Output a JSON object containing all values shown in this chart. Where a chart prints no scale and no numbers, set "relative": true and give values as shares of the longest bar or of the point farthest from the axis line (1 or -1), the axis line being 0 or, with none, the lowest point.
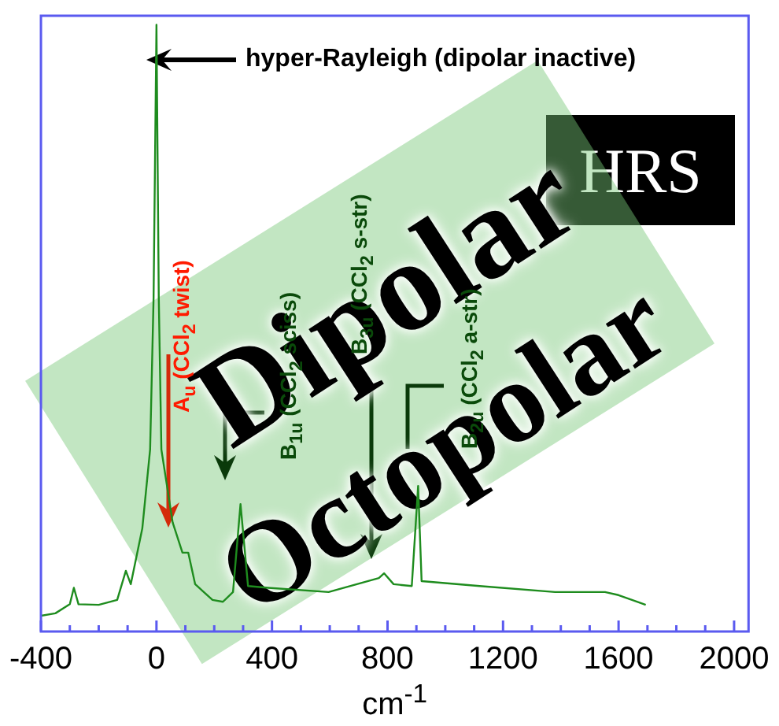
{
  "chart_data": {
    "type": "line",
    "xlabel": "cm$^{-1}$",
    "relative": true,
    "marker": "none",
    "color": "#1e8c1e",
    "xlim": [
      -400,
      2050
    ],
    "xticks": [
      -400,
      {
        "value": -300,
        "label": null
      },
      {
        "value": -200,
        "label": null
      },
      {
        "value": -100,
        "label": null
      },
      0,
      {
        "value": 100,
        "label": null
      },
      {
        "value": 200,
        "label": null
      },
      {
        "value": 300,
        "label": null
      },
      400,
      {
        "value": 500,
        "label": null
      },
      {
        "value": 600,
        "label": null
      },
      {
        "value": 700,
        "label": null
      },
      800,
      {
        "value": 900,
        "label": null
      },
      {
        "value": 1000,
        "label": null
      },
      {
        "value": 1100,
        "label": null
      },
      1200,
      {
        "value": 1300,
        "label": null
      },
      {
        "value": 1400,
        "label": null
      },
      {
        "value": 1500,
        "label": null
      },
      1600,
      {
        "value": 1700,
        "label": null
      },
      {
        "value": 1800,
        "label": null
      },
      {
        "value": 1900,
        "label": null
      },
      2000
    ],
    "x": [
      -400,
      -350,
      -300,
      -286,
      -270,
      -200,
      -136,
      -106,
      -89,
      -49,
      -22,
      -10,
      0,
      8,
      17,
      56,
      90,
      110,
      134,
      194,
      230,
      265,
      291,
      317,
      387,
      596,
      770,
      788,
      821,
      884,
      906,
      918,
      1119,
      1380,
      1553,
      1600,
      1694
    ],
    "values": [
      0.026,
      0.03,
      0.045,
      0.072,
      0.045,
      0.044,
      0.052,
      0.1,
      0.078,
      0.17,
      0.3,
      0.55,
      1,
      0.55,
      0.3,
      0.18,
      0.13,
      0.13,
      0.078,
      0.052,
      0.049,
      0.065,
      0.21,
      0.075,
      0.072,
      0.065,
      0.088,
      0.096,
      0.078,
      0.075,
      0.24,
      0.083,
      0.075,
      0.065,
      0.065,
      0.06,
      0.044
    ],
    "annotations": [
      "hyper-Rayleigh (dipolar inactive)",
      "A$_{u}$ (CCl$_{2}$ twist)",
      "B$_{1u}$ (CCl$_{2}$ sciss)",
      "B$_{3u}$ (CCl$_{2}$ s-str)",
      "B$_{2u}$ (CCl$_{2}$ a-str)",
      "Dipolar",
      "Octopolar",
      "HRS"
    ]
  }
}
